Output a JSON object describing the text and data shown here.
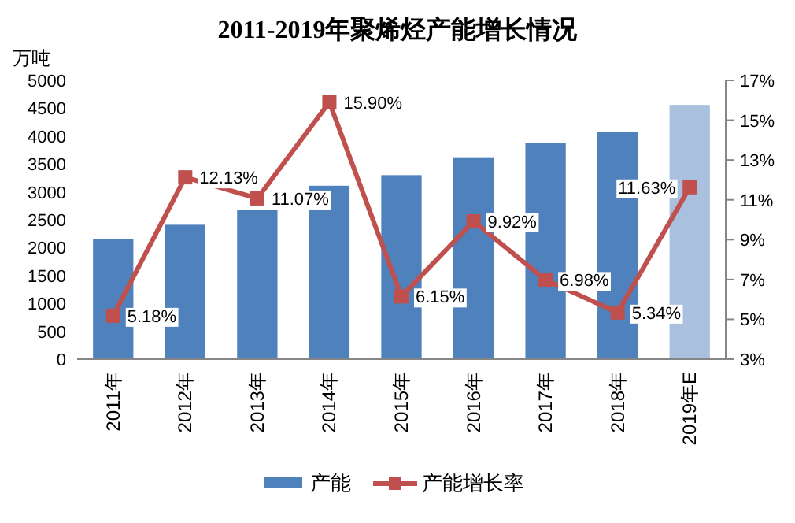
{
  "chart_data": {
    "type": "bar",
    "title": "2011-2019年聚烯烃产能增长情况",
    "ylabel": "万吨",
    "categories": [
      "2011年",
      "2012年",
      "2013年",
      "2014年",
      "2015年",
      "2016年",
      "2017年",
      "2018年",
      "2019年E"
    ],
    "series": [
      {
        "name": "产能",
        "color": "#4f81bd",
        "colors": [
          "#4f81bd",
          "#4f81bd",
          "#4f81bd",
          "#4f81bd",
          "#4f81bd",
          "#4f81bd",
          "#4f81bd",
          "#4f81bd",
          "#a9c1df"
        ],
        "values": [
          2150,
          2410,
          2680,
          3110,
          3300,
          3620,
          3880,
          4080,
          4560
        ]
      },
      {
        "name": "产能增长率",
        "type": "line",
        "axis": "y2",
        "color": "#c0504d",
        "marker": "square",
        "values": [
          5.18,
          12.13,
          11.07,
          15.9,
          6.15,
          9.92,
          6.98,
          5.34,
          11.63
        ],
        "value_labels": [
          "5.18%",
          "12.13%",
          "11.07%",
          "15.90%",
          "6.15%",
          "9.92%",
          "6.98%",
          "5.34%",
          "11.63%"
        ]
      }
    ],
    "ylim": [
      0,
      5000
    ],
    "yticks": [
      0,
      500,
      1000,
      1500,
      2000,
      2500,
      3000,
      3500,
      4000,
      4500,
      5000
    ],
    "y2lim": [
      3,
      17
    ],
    "y2ticks": [
      {
        "value": 3,
        "label": "3%"
      },
      {
        "value": 5,
        "label": "5%"
      },
      {
        "value": 7,
        "label": "7%"
      },
      {
        "value": 9,
        "label": "9%"
      },
      {
        "value": 11,
        "label": "11%"
      },
      {
        "value": 13,
        "label": "13%"
      },
      {
        "value": 15,
        "label": "15%"
      },
      {
        "value": 17,
        "label": "17%"
      }
    ],
    "grid": false,
    "legend": "bottom"
  }
}
